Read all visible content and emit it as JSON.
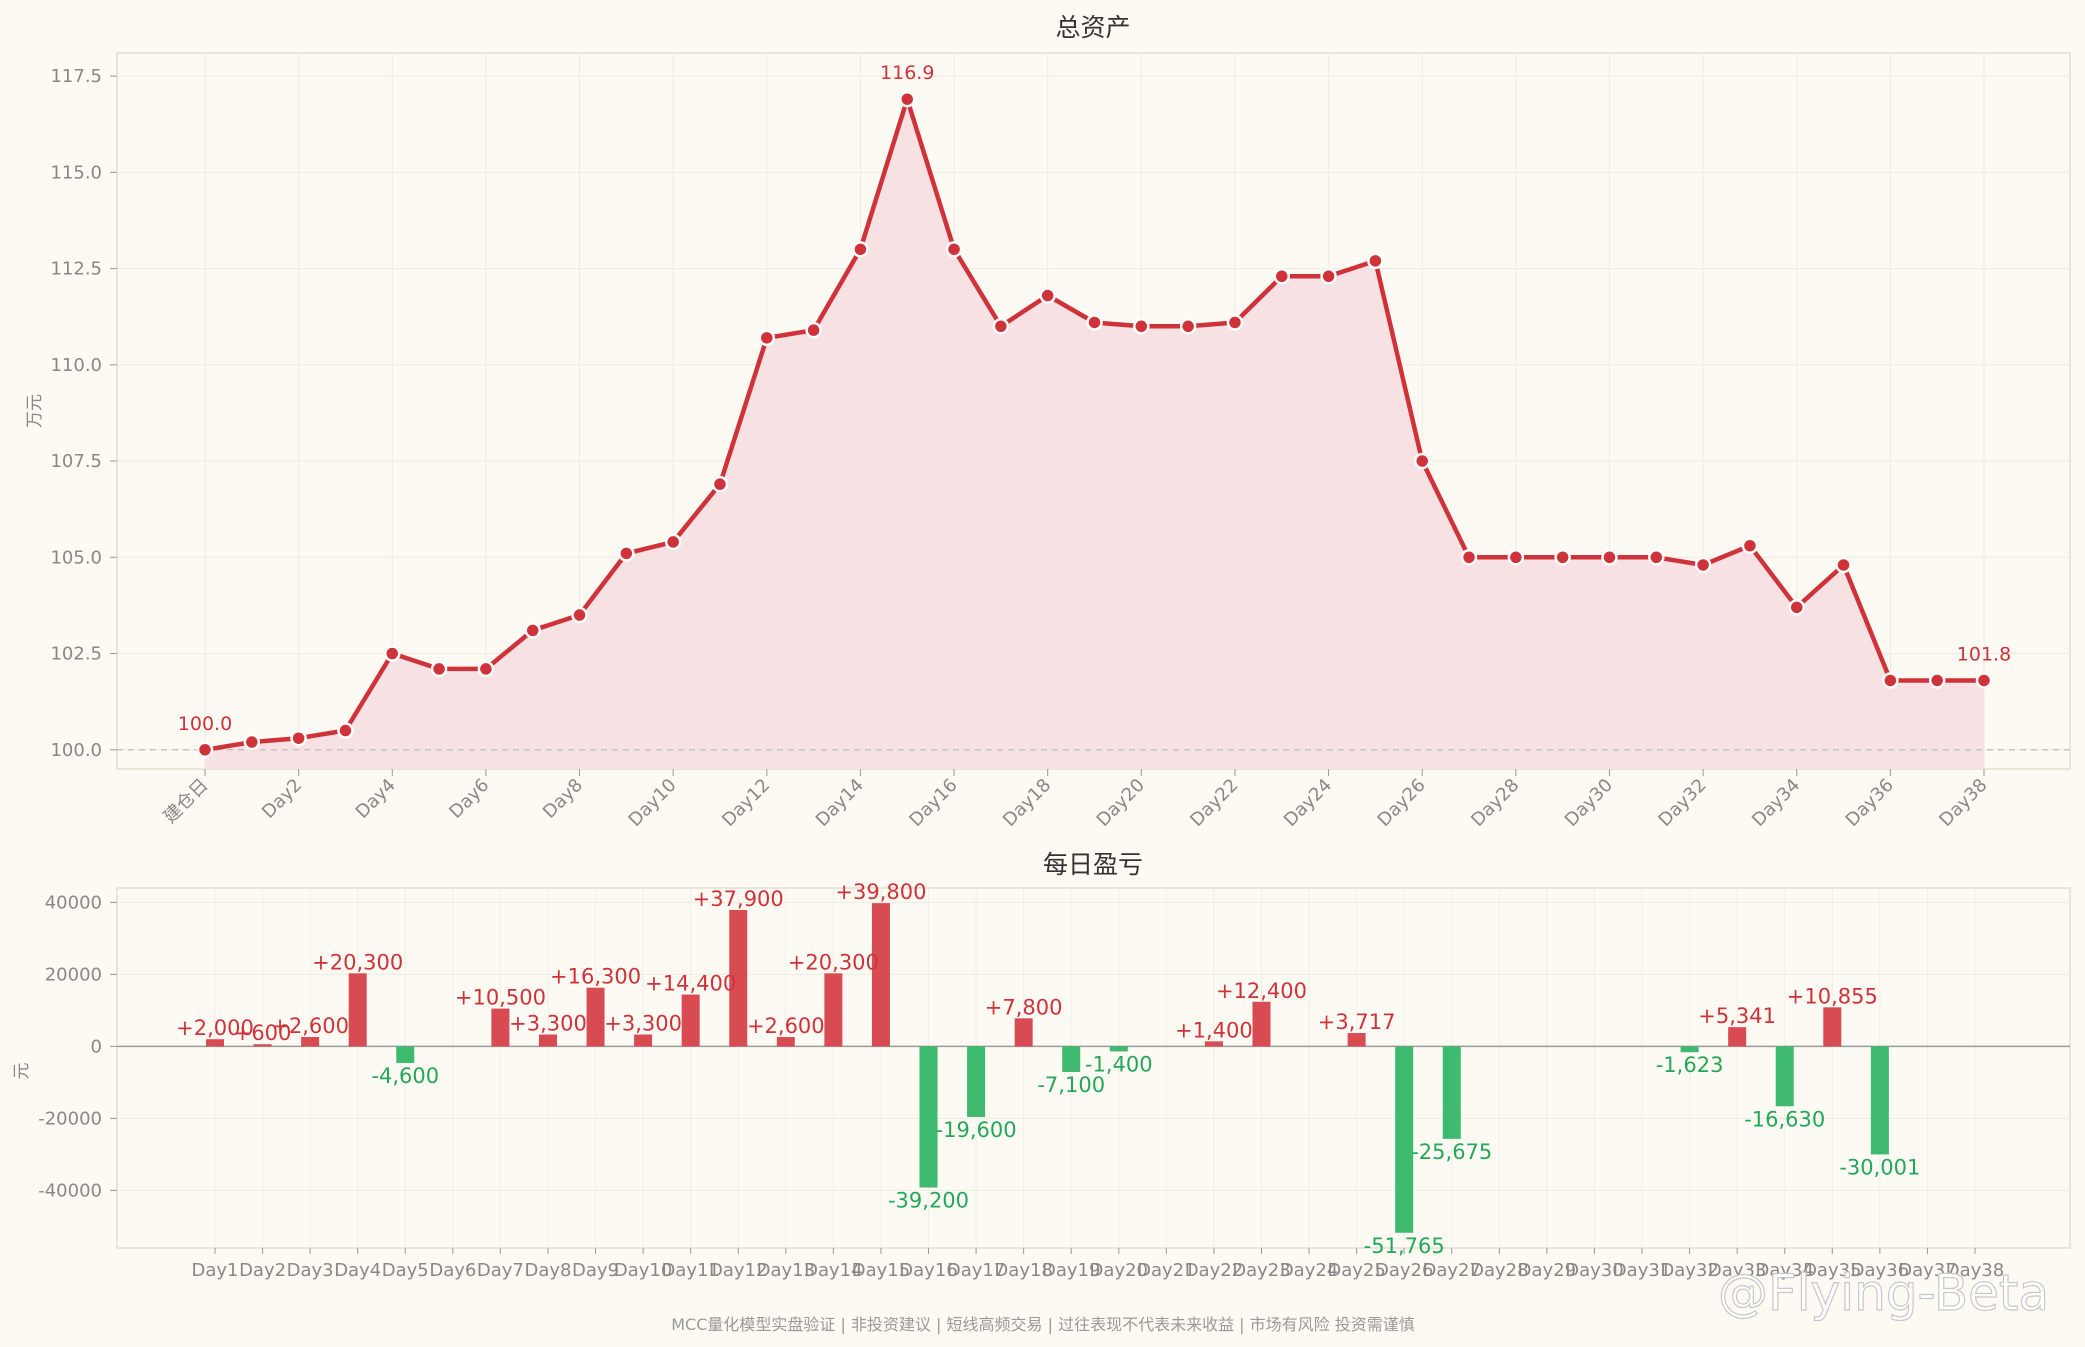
{
  "chart_data": [
    {
      "type": "area",
      "title": "总资产",
      "ylabel": "万元",
      "ylim": [
        99.5,
        118.1
      ],
      "yticks": [
        100.0,
        102.5,
        105.0,
        107.5,
        110.0,
        112.5,
        115.0,
        117.5
      ],
      "baseline": 100.0,
      "grid": true,
      "color": "#d0323a",
      "fill_color": "#f7e1e3",
      "x": [
        "建仓日",
        "Day1",
        "Day2",
        "Day3",
        "Day4",
        "Day5",
        "Day6",
        "Day7",
        "Day8",
        "Day9",
        "Day10",
        "Day11",
        "Day12",
        "Day13",
        "Day14",
        "Day15",
        "Day16",
        "Day17",
        "Day18",
        "Day19",
        "Day20",
        "Day21",
        "Day22",
        "Day23",
        "Day24",
        "Day25",
        "Day26",
        "Day27",
        "Day28",
        "Day29",
        "Day30",
        "Day31",
        "Day32",
        "Day33",
        "Day34",
        "Day35",
        "Day36",
        "Day37",
        "Day38"
      ],
      "xtick_labels": [
        "建仓日",
        "Day2",
        "Day4",
        "Day6",
        "Day8",
        "Day10",
        "Day12",
        "Day14",
        "Day16",
        "Day18",
        "Day20",
        "Day22",
        "Day24",
        "Day26",
        "Day28",
        "Day30",
        "Day32",
        "Day34",
        "Day36",
        "Day38"
      ],
      "values": [
        100.0,
        100.2,
        100.3,
        100.5,
        102.5,
        102.1,
        102.1,
        103.1,
        103.5,
        105.1,
        105.4,
        106.9,
        110.7,
        110.9,
        113.0,
        116.9,
        113.0,
        111.0,
        111.8,
        111.1,
        111.0,
        111.0,
        111.1,
        112.3,
        112.3,
        112.7,
        107.5,
        105.0,
        105.0,
        105.0,
        105.0,
        105.0,
        104.8,
        105.3,
        103.7,
        104.8,
        101.8,
        101.8,
        101.8
      ],
      "annotations": [
        {
          "index": 0,
          "text": "100.0"
        },
        {
          "index": 15,
          "text": "116.9"
        },
        {
          "index": 38,
          "text": "101.8"
        }
      ]
    },
    {
      "type": "bar",
      "title": "每日盈亏",
      "ylabel": "元",
      "ylim": [
        -56000,
        44000
      ],
      "yticks": [
        -40000,
        -20000,
        0,
        20000,
        40000
      ],
      "grid": true,
      "positive_color": "#d94b52",
      "negative_color": "#3dba6e",
      "categories": [
        "Day1",
        "Day2",
        "Day3",
        "Day4",
        "Day5",
        "Day6",
        "Day7",
        "Day8",
        "Day9",
        "Day10",
        "Day11",
        "Day12",
        "Day13",
        "Day14",
        "Day15",
        "Day16",
        "Day17",
        "Day18",
        "Day19",
        "Day20",
        "Day21",
        "Day22",
        "Day23",
        "Day24",
        "Day25",
        "Day26",
        "Day27",
        "Day28",
        "Day29",
        "Day30",
        "Day31",
        "Day32",
        "Day33",
        "Day34",
        "Day35",
        "Day36",
        "Day37",
        "Day38"
      ],
      "values": [
        2000,
        600,
        2600,
        20300,
        -4600,
        0,
        10500,
        3300,
        16300,
        3300,
        14400,
        37900,
        2600,
        20300,
        39800,
        -39200,
        -19600,
        7800,
        -7100,
        -1400,
        0,
        1400,
        12400,
        0,
        3717,
        -51765,
        -25675,
        0,
        0,
        0,
        0,
        -1623,
        5341,
        -16630,
        10855,
        -30001,
        0,
        0
      ],
      "labels": [
        "+2,000",
        "+600",
        "+2,600",
        "+20,300",
        "-4,600",
        "",
        "+10,500",
        "+3,300",
        "+16,300",
        "+3,300",
        "+14,400",
        "+37,900",
        "+2,600",
        "+20,300",
        "+39,800",
        "-39,200",
        "-19,600",
        "+7,800",
        "-7,100",
        "-1,400",
        "",
        "+1,400",
        "+12,400",
        "",
        "+3,717",
        "-51,765",
        "-25,675",
        "",
        "",
        "",
        "",
        "-1,623",
        "+5,341",
        "-16,630",
        "+10,855",
        "-30,001",
        "",
        ""
      ]
    }
  ],
  "footer": "MCC量化模型实盘验证 | 非投资建议 | 短线高频交易 | 过往表现不代表未来收益 | 市场有风险 投资需谨慎",
  "watermark": "@Flying-Beta"
}
